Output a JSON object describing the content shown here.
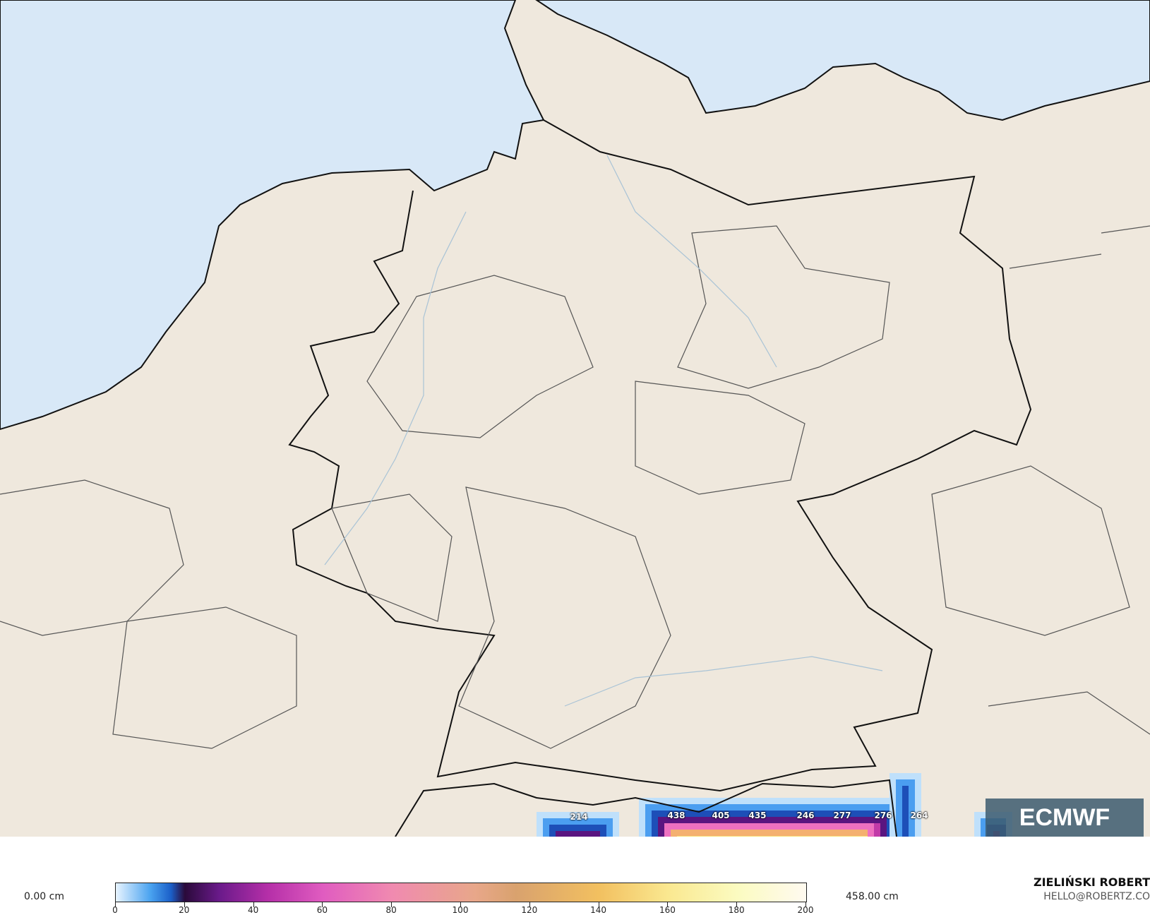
{
  "map": {
    "colors": {
      "sea": "#d8e8f7",
      "land": "#efe8dd",
      "border": "#111111",
      "admin": "#555555",
      "river": "#a9c3d6"
    },
    "snow_values": [
      "214",
      "438",
      "405",
      "435",
      "246",
      "277",
      "276",
      "264"
    ],
    "logo_text": "ECMWF"
  },
  "legend": {
    "min_label": "0.00 cm",
    "max_label": "458.00 cm",
    "ticks": [
      "0",
      "20",
      "40",
      "60",
      "80",
      "100",
      "120",
      "140",
      "160",
      "180",
      "200"
    ]
  },
  "credits": {
    "author": "ZIELIŃSKI ROBERT",
    "email": "HELLO@ROBERTZ.CO"
  }
}
